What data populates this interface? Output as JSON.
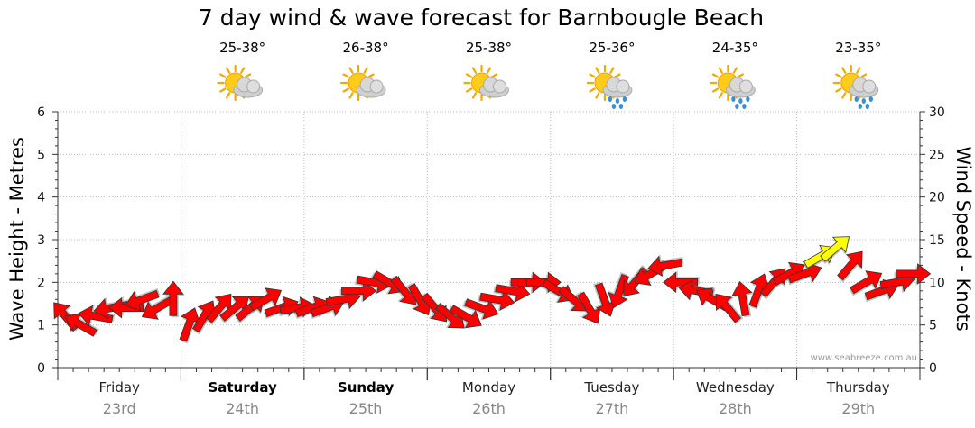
{
  "chart_data": {
    "type": "scatter",
    "title": "7 day wind & wave forecast for Barnbougle Beach",
    "ylabel_left": "Wave Height - Metres",
    "ylabel_right": "Wind Speed - Knots",
    "ylim_left": [
      0,
      6
    ],
    "ylim_right": [
      0,
      30
    ],
    "left_ticks": [
      "0",
      "1",
      "2",
      "3",
      "4",
      "5",
      "6"
    ],
    "right_ticks": [
      "0",
      "5",
      "10",
      "15",
      "20",
      "25",
      "30"
    ],
    "grid": true,
    "credit": "www.seabreeze.com.au",
    "days": [
      {
        "name": "Friday",
        "date": "23rd",
        "bold": false,
        "temp": ""
      },
      {
        "name": "Saturday",
        "date": "24th",
        "bold": true,
        "temp": "25-38°",
        "weather": "partly-cloudy"
      },
      {
        "name": "Sunday",
        "date": "25th",
        "bold": true,
        "temp": "26-38°",
        "weather": "partly-cloudy"
      },
      {
        "name": "Monday",
        "date": "26th",
        "bold": false,
        "temp": "25-38°",
        "weather": "partly-cloudy"
      },
      {
        "name": "Tuesday",
        "date": "27th",
        "bold": false,
        "temp": "25-36°",
        "weather": "showers"
      },
      {
        "name": "Wednesday",
        "date": "28th",
        "bold": false,
        "temp": "24-35°",
        "weather": "showers"
      },
      {
        "name": "Thursday",
        "date": "29th",
        "bold": false,
        "temp": "23-35°",
        "weather": "showers"
      }
    ],
    "series": [
      {
        "unit": "knots",
        "points_per_day": 8,
        "colors": {
          "normal": "#ff0000",
          "strong": "#ffff00",
          "outline": "#333333"
        },
        "strong_threshold": 13,
        "wind_speed": [
          6,
          5,
          6,
          7,
          7,
          8,
          7,
          8,
          5,
          6,
          7,
          7,
          7,
          8,
          7,
          7,
          7,
          7,
          8,
          9,
          10,
          10,
          9,
          8,
          7,
          6,
          6,
          7,
          8,
          9,
          10,
          10,
          9,
          8,
          7,
          8,
          9,
          10,
          11,
          12,
          10,
          9,
          8,
          7,
          8,
          9,
          10,
          11,
          11,
          13,
          14,
          12,
          10,
          9,
          10,
          11
        ],
        "wind_direction_deg": [
          140,
          120,
          100,
          80,
          90,
          70,
          60,
          180,
          200,
          210,
          220,
          230,
          230,
          240,
          250,
          260,
          250,
          250,
          260,
          270,
          280,
          300,
          320,
          330,
          320,
          310,
          300,
          290,
          280,
          280,
          270,
          270,
          300,
          310,
          330,
          340,
          20,
          40,
          60,
          80,
          90,
          100,
          120,
          140,
          170,
          200,
          220,
          240,
          250,
          240,
          230,
          220,
          240,
          250,
          260,
          270
        ]
      }
    ]
  }
}
